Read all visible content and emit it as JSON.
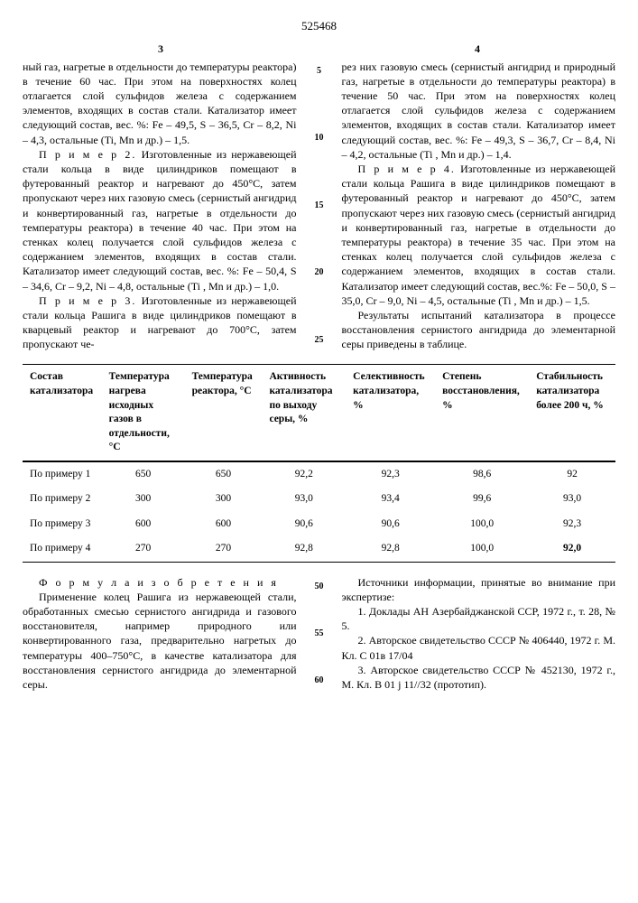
{
  "doc_number": "525468",
  "page_left": "3",
  "page_right": "4",
  "left_text": "ный газ, нагретые в отдельности до температуры реактора) в течение 60 час. При этом на поверхностях колец отлагается слой сульфидов железа с содержанием элементов, входящих в состав стали. Катализатор имеет следующий состав, вес. %: Fe – 49,5, S – 36,5, Cr – 8,2, Ni – 4,3, остальные (Ti, Mn и др.) – 1,5.",
  "left_ex2_title": "П р и м е р  2.",
  "left_ex2_body": "Изготовленные из нержавеющей стали кольца в виде цилиндриков помещают в футерованный реактор и нагревают до 450°С, затем пропускают через них газовую смесь (сернистый ангидрид и конвертированный газ, нагретые в отдельности до температуры реактора) в течение 40 час. При этом на стенках колец получается слой сульфидов железа с содержанием элементов, входящих в состав стали. Катализатор имеет следующий состав, вес. %: Fe – 50,4,  S – 34,6,  Cr – 9,2, Ni – 4,8, остальные (Ti , Mn и др.) – 1,0.",
  "left_ex3_title": "П р и м е р  3.",
  "left_ex3_body": "Изготовленные из нержавеющей стали кольца Рашига в виде цилиндриков помещают в кварцевый реактор и нагревают до 700°С, затем пропускают че-",
  "right_text": "рез них газовую смесь (сернистый ангидрид и природный газ, нагретые в отдельности до температуры реактора) в течение 50 час. При этом на поверхностях колец отлагается слой сульфидов железа с содержанием элементов, входящих в состав стали. Катализатор имеет следующий состав, вес. %: Fe – 49,3,  S – 36,7,  Cr – 8,4, Ni – 4,2, остальные (Ti , Mn и др.) – 1,4.",
  "right_ex4_title": "П р и м е р  4.",
  "right_ex4_body": "Изготовленные из нержавеющей стали кольца Рашига в виде цилиндриков помещают в футерованный реактор и нагревают до 450°С, затем пропускают через них газовую смесь (сернистый ангидрид и конвертированный газ, нагретые в отдельности до температуры реактора) в течение 35 час. При этом на стенках колец получается слой сульфидов железа с содержанием элементов, входящих в состав стали. Катализатор имеет следующий состав, вес.%: Fe – 50,0,  S – 35,0,  Cr – 9,0,  Ni – 4,5, остальные (Ti , Mn и др.) – 1,5.",
  "right_results": "Результаты испытаний катализатора в процессе восстановления сернистого ангидрида до элементарной серы приведены в таблице.",
  "markers": [
    "5",
    "10",
    "15",
    "20",
    "25"
  ],
  "table": {
    "headers": [
      "Состав катализатора",
      "Температура нагрева исходных газов в отдельности, °С",
      "Температура реактора, °С",
      "Активность катализатора по выходу серы, %",
      "Селективность катализатора, %",
      "Степень восстановления, %",
      "Стабильность катализатора более 200 ч, %"
    ],
    "rows": [
      {
        "label": "По примеру 1",
        "values": [
          "650",
          "650",
          "92,2",
          "92,3",
          "98,6",
          "92"
        ]
      },
      {
        "label": "По примеру 2",
        "values": [
          "300",
          "300",
          "93,0",
          "93,4",
          "99,6",
          "93,0"
        ]
      },
      {
        "label": "По примеру 3",
        "values": [
          "600",
          "600",
          "90,6",
          "90,6",
          "100,0",
          "92,3"
        ]
      },
      {
        "label": "По примеру 4",
        "values": [
          "270",
          "270",
          "92,8",
          "92,8",
          "100,0",
          "92,0"
        ]
      }
    ]
  },
  "formula_title": "Ф о р м у л а  и з о б р е т е н и я",
  "formula_body": "Применение колец Рашига из нержавеющей стали, обработанных смесью сернистого ангидрида и газового восстановителя, например природного или конвертированного газа, предварительно нагретых до температуры 400–750°С, в качестве катализатора для восстановления сернистого ангидрида до элементарной серы.",
  "sources_title": "Источники информации, принятые во внимание при экспертизе:",
  "sources": [
    "1. Доклады АН Азербайджанской ССР, 1972 г., т. 28, № 5.",
    "2. Авторское свидетельство СССР № 406440, 1972 г. М. Кл. С 01в 17/04",
    "3. Авторское свидетельство СССР № 452130, 1972 г., М. Кл. В 01 j 11//32 (прототип)."
  ],
  "bottom_markers": [
    "50",
    "55",
    "60"
  ]
}
